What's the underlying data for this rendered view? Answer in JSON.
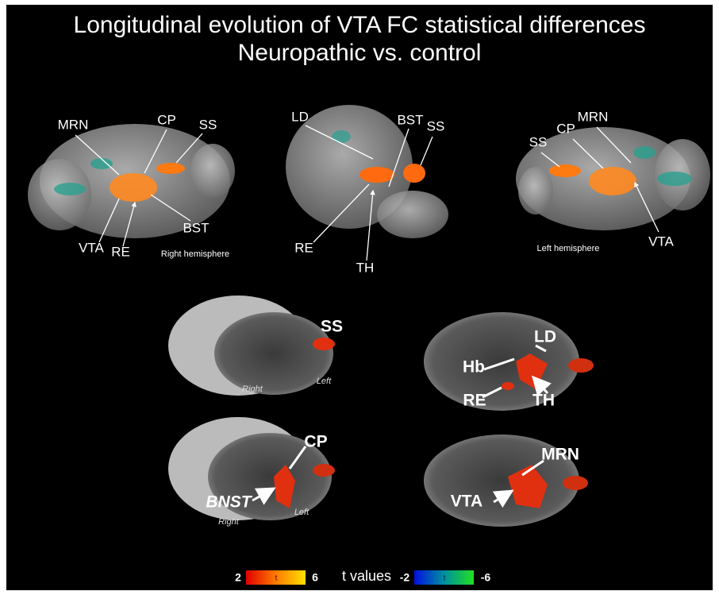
{
  "title": {
    "line1": "Longitudinal evolution of VTA FC statistical differences",
    "line2": "Neuropathic vs. control"
  },
  "top_views": [
    {
      "labels": [
        "MRN",
        "CP",
        "SS",
        "BST",
        "VTA",
        "RE"
      ],
      "caption": "Right hemisphere"
    },
    {
      "labels": [
        "LD",
        "BST",
        "SS",
        "RE",
        "TH"
      ]
    },
    {
      "labels": [
        "SS",
        "CP",
        "MRN",
        "VTA"
      ],
      "caption": "Left hemisphere"
    }
  ],
  "slices": [
    {
      "labels": [
        "SS"
      ],
      "sides": [
        "Right",
        "Left"
      ]
    },
    {
      "labels": [
        "LD",
        "Hb",
        "RE",
        "TH"
      ]
    },
    {
      "labels": [
        "CP",
        "BNST"
      ],
      "sides": [
        "Right",
        "Left"
      ]
    },
    {
      "labels": [
        "MRN",
        "VTA"
      ]
    }
  ],
  "colorbar": {
    "positive_min": "2",
    "positive_symbol": "t",
    "positive_max": "6",
    "caption": "t values",
    "negative_min": "-2",
    "negative_symbol": "t",
    "negative_max": "-6"
  }
}
